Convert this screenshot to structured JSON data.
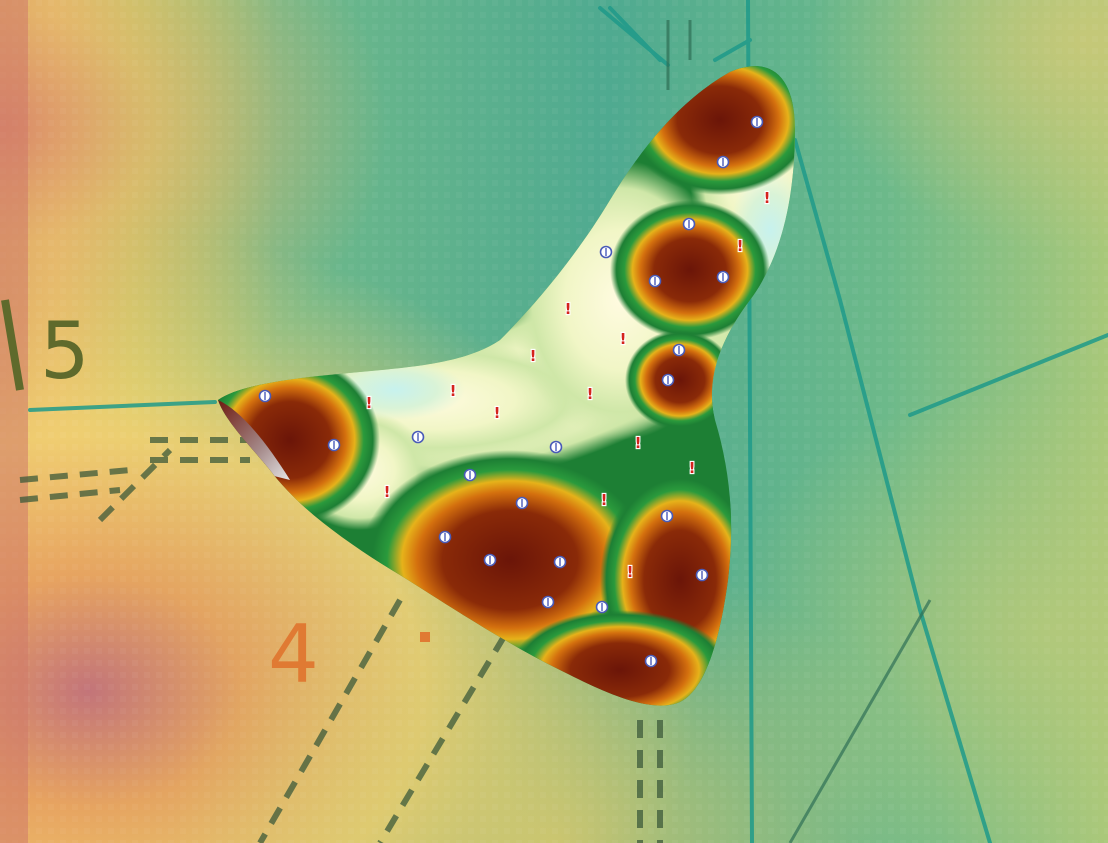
{
  "map": {
    "contour_labels": [
      {
        "text": "5",
        "color": "#5f6a2c"
      },
      {
        "text": "4",
        "color": "#e07a33"
      }
    ],
    "legend_colors": {
      "high": "#7a1a0a",
      "mid_high": "#c86a10",
      "mid": "#1f8f3a",
      "low": "#eef5c0",
      "lowest": "#bfeff0"
    },
    "markers": {
      "circle_count": 22,
      "exclaim_count": 18,
      "circle_symbol": "circle-marker-icon",
      "exclaim_symbol": "exclamation-marker-icon",
      "exclaim_text": "!"
    }
  }
}
